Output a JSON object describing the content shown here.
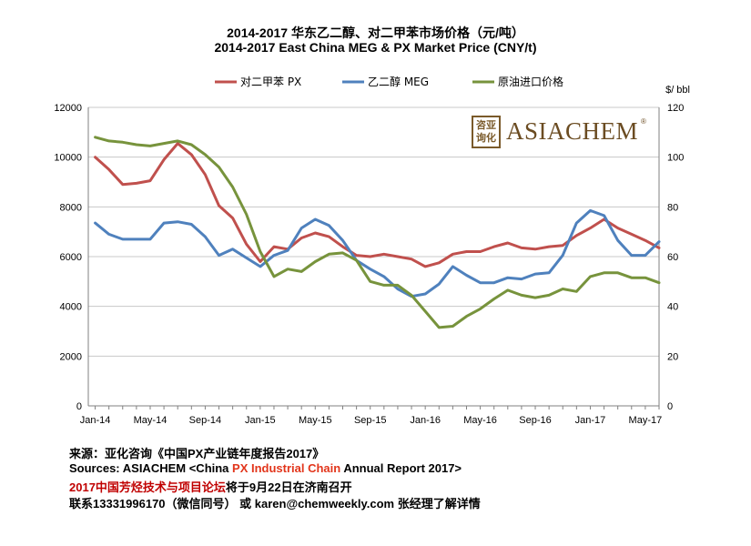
{
  "title_cn": "2014-2017 华东乙二醇、对二甲苯市场价格（元/吨）",
  "title_en": "2014-2017 East China  MEG & PX Market Price (CNY/t)",
  "logo": {
    "seal": "咨亚询化",
    "brand": "ASIACHEM",
    "reg": "®"
  },
  "footer": {
    "line1": "来源：亚化咨询《中国PX产业链年度报告2017》",
    "line2_pre": "Sources: ASIACHEM <China ",
    "line2_red": "PX Industrial Chain",
    "line2_post": " Annual Report 2017>",
    "line3_red": "2017中国芳烃技术与项目论坛",
    "line3_post": "将于9月22日在济南召开",
    "line4": "联系13331996170（微信同号） 或 karen@chemweekly.com 张经理了解详情"
  },
  "chart_data": {
    "type": "line",
    "x": [
      "Jan-14",
      "Feb-14",
      "Mar-14",
      "Apr-14",
      "May-14",
      "Jun-14",
      "Jul-14",
      "Aug-14",
      "Sep-14",
      "Oct-14",
      "Nov-14",
      "Dec-14",
      "Jan-15",
      "Feb-15",
      "Mar-15",
      "Apr-15",
      "May-15",
      "Jun-15",
      "Jul-15",
      "Aug-15",
      "Sep-15",
      "Oct-15",
      "Nov-15",
      "Dec-15",
      "Jan-16",
      "Feb-16",
      "Mar-16",
      "Apr-16",
      "May-16",
      "Jun-16",
      "Jul-16",
      "Aug-16",
      "Sep-16",
      "Oct-16",
      "Nov-16",
      "Dec-16",
      "Jan-17",
      "Feb-17",
      "Mar-17",
      "Apr-17",
      "May-17",
      "Jun-17"
    ],
    "x_tick_labels": [
      "Jan-14",
      "May-14",
      "Sep-14",
      "Jan-15",
      "May-15",
      "Sep-15",
      "Jan-16",
      "May-16",
      "Sep-16",
      "Jan-17",
      "May-17"
    ],
    "y_left": {
      "ylim": [
        0,
        12000
      ],
      "ticks": [
        0,
        2000,
        4000,
        6000,
        8000,
        10000,
        12000
      ]
    },
    "y_right": {
      "label": "$/ bbl",
      "ylim": [
        0,
        120
      ],
      "ticks": [
        0,
        20,
        40,
        60,
        80,
        100,
        120
      ]
    },
    "legend_position": "top",
    "grid": "horizontal",
    "series": [
      {
        "name": "对二甲苯 PX",
        "axis": "left",
        "color": "#c0504d",
        "values": [
          10000,
          9500,
          8900,
          8950,
          9050,
          9900,
          10550,
          10100,
          9300,
          8050,
          7550,
          6500,
          5800,
          6400,
          6300,
          6750,
          6950,
          6800,
          6400,
          6050,
          6000,
          6100,
          6000,
          5900,
          5600,
          5750,
          6100,
          6200,
          6200,
          6400,
          6550,
          6350,
          6300,
          6400,
          6450,
          6850,
          7150,
          7500,
          7150,
          6900,
          6650,
          6350
        ]
      },
      {
        "name": "乙二醇 MEG",
        "axis": "left",
        "color": "#4f81bd",
        "values": [
          7350,
          6900,
          6700,
          6700,
          6700,
          7350,
          7400,
          7300,
          6800,
          6050,
          6300,
          5950,
          5600,
          6050,
          6250,
          7150,
          7500,
          7250,
          6650,
          5850,
          5500,
          5200,
          4700,
          4400,
          4500,
          4900,
          5600,
          5250,
          4950,
          4950,
          5150,
          5100,
          5300,
          5350,
          6050,
          7350,
          7850,
          7650,
          6650,
          6050,
          6050,
          6600
        ]
      },
      {
        "name": "原油进口价格",
        "axis": "right",
        "color": "#77933c",
        "values": [
          108,
          106.5,
          106,
          105,
          104.5,
          105.5,
          106.5,
          105,
          101,
          96,
          88,
          77,
          62,
          52,
          55,
          54,
          58,
          61,
          61.5,
          58.5,
          50,
          48.5,
          48.5,
          44.5,
          38,
          31.5,
          32,
          36,
          39,
          43,
          46.5,
          44.5,
          43.5,
          44.5,
          47,
          46,
          52,
          53.5,
          53.5,
          51.5,
          51.5,
          49.5
        ]
      }
    ]
  }
}
